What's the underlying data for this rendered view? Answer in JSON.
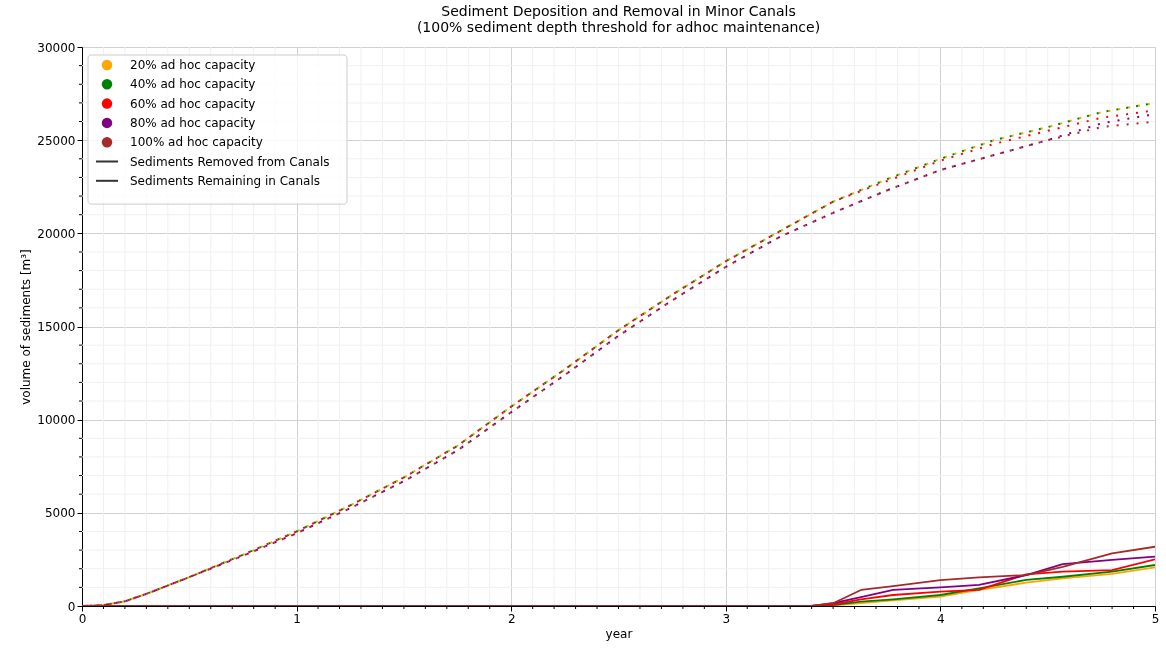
{
  "chart_data": {
    "type": "line",
    "title": "Sediment Deposition and Removal in Minor Canals",
    "subtitle": "(100% sediment depth threshold for adhoc maintenance)",
    "xlabel": "year",
    "ylabel": "volume of sediments [m³]",
    "x": [
      0,
      0.1,
      0.2,
      0.3,
      0.4,
      0.5,
      0.75,
      1,
      1.25,
      1.5,
      1.75,
      2,
      2.25,
      2.5,
      2.75,
      3,
      3.25,
      3.5,
      3.75,
      4,
      4.25,
      4.5,
      4.75,
      5
    ],
    "series": [
      {
        "name": "20% ad hoc capacity",
        "color": "#ffa500",
        "line_style": "dotted",
        "values": [
          0,
          50,
          250,
          650,
          1100,
          1550,
          2750,
          4000,
          5400,
          6900,
          8600,
          10700,
          12700,
          14800,
          16700,
          18500,
          20100,
          21700,
          22900,
          24000,
          25000,
          25700,
          26500,
          27000
        ]
      },
      {
        "name": "40% ad hoc capacity",
        "color": "#008000",
        "line_style": "dotted",
        "values": [
          0,
          50,
          250,
          650,
          1100,
          1550,
          2750,
          4000,
          5400,
          6900,
          8600,
          10700,
          12700,
          14800,
          16700,
          18500,
          20100,
          21700,
          22900,
          24000,
          25000,
          25700,
          26500,
          27000
        ]
      },
      {
        "name": "60% ad hoc capacity",
        "color": "#ff0000",
        "line_style": "dotted",
        "values": [
          0,
          50,
          250,
          650,
          1100,
          1550,
          2750,
          4000,
          5400,
          6900,
          8600,
          10700,
          12700,
          14800,
          16700,
          18500,
          20100,
          21700,
          22800,
          23900,
          24800,
          25500,
          26200,
          26600
        ]
      },
      {
        "name": "80% ad hoc capacity",
        "color": "#800080",
        "line_style": "dotted",
        "values": [
          0,
          50,
          250,
          650,
          1100,
          1550,
          2700,
          3900,
          5250,
          6700,
          8350,
          10400,
          12400,
          14500,
          16400,
          18200,
          19800,
          21100,
          22300,
          23400,
          24200,
          25000,
          25900,
          26400
        ]
      },
      {
        "name": "100% ad hoc capacity",
        "color": "#a52a2a",
        "line_style": "dotted",
        "values": [
          0,
          50,
          250,
          650,
          1100,
          1550,
          2700,
          3900,
          5250,
          6700,
          8350,
          10400,
          12400,
          14500,
          16400,
          18200,
          19800,
          21100,
          22300,
          23400,
          24200,
          25000,
          25700,
          26000
        ]
      },
      {
        "color": "#ffa500",
        "line_style": "solid",
        "x": [
          3.4,
          3.5,
          3.63,
          3.78,
          4,
          4.18,
          4.4,
          4.57,
          4.8,
          5
        ],
        "values": [
          0,
          30,
          150,
          300,
          500,
          860,
          1250,
          1480,
          1720,
          2070
        ]
      },
      {
        "color": "#008000",
        "line_style": "solid",
        "x": [
          3.4,
          3.5,
          3.63,
          3.78,
          4,
          4.18,
          4.4,
          4.57,
          4.8,
          5
        ],
        "values": [
          0,
          50,
          230,
          360,
          590,
          950,
          1400,
          1570,
          1840,
          2200
        ]
      },
      {
        "color": "#ff0000",
        "line_style": "solid",
        "x": [
          3.4,
          3.5,
          3.63,
          3.78,
          4,
          4.18,
          4.4,
          4.57,
          4.8,
          5
        ],
        "values": [
          0,
          80,
          360,
          590,
          770,
          860,
          1700,
          1840,
          1930,
          2500
        ]
      },
      {
        "color": "#800080",
        "line_style": "solid",
        "x": [
          3.4,
          3.5,
          3.63,
          3.78,
          4,
          4.18,
          4.4,
          4.57,
          4.8,
          5
        ],
        "values": [
          0,
          150,
          470,
          860,
          1000,
          1130,
          1660,
          2250,
          2470,
          2650
        ]
      },
      {
        "color": "#a52a2a",
        "line_style": "solid",
        "x": [
          0,
          3.4,
          3.5,
          3.63,
          3.78,
          4,
          4.18,
          4.4,
          4.57,
          4.8,
          5
        ],
        "values": [
          0,
          0,
          150,
          860,
          1070,
          1390,
          1540,
          1660,
          2100,
          2830,
          3180
        ]
      }
    ],
    "annotations": [
      "Sediments Removed from Canals",
      "Sediments Remaining in Canals"
    ],
    "xlim": [
      0,
      5
    ],
    "xticks": [
      0,
      {
        "value": 0.1,
        "label": null
      },
      {
        "value": 0.2,
        "label": null
      },
      {
        "value": 0.3,
        "label": null
      },
      {
        "value": 0.4,
        "label": null
      },
      {
        "value": 0.5,
        "label": null
      },
      {
        "value": 0.6,
        "label": null
      },
      {
        "value": 0.7,
        "label": null
      },
      {
        "value": 0.8,
        "label": null
      },
      {
        "value": 0.9,
        "label": null
      },
      1,
      {
        "value": 1.1,
        "label": null
      },
      {
        "value": 1.2,
        "label": null
      },
      {
        "value": 1.3,
        "label": null
      },
      {
        "value": 1.4,
        "label": null
      },
      {
        "value": 1.5,
        "label": null
      },
      {
        "value": 1.6,
        "label": null
      },
      {
        "value": 1.7,
        "label": null
      },
      {
        "value": 1.8,
        "label": null
      },
      {
        "value": 1.9,
        "label": null
      },
      2,
      {
        "value": 2.1,
        "label": null
      },
      {
        "value": 2.2,
        "label": null
      },
      {
        "value": 2.3,
        "label": null
      },
      {
        "value": 2.4,
        "label": null
      },
      {
        "value": 2.5,
        "label": null
      },
      {
        "value": 2.6,
        "label": null
      },
      {
        "value": 2.7,
        "label": null
      },
      {
        "value": 2.8,
        "label": null
      },
      {
        "value": 2.9,
        "label": null
      },
      3,
      {
        "value": 3.1,
        "label": null
      },
      {
        "value": 3.2,
        "label": null
      },
      {
        "value": 3.3,
        "label": null
      },
      {
        "value": 3.4,
        "label": null
      },
      {
        "value": 3.5,
        "label": null
      },
      {
        "value": 3.6,
        "label": null
      },
      {
        "value": 3.7,
        "label": null
      },
      {
        "value": 3.8,
        "label": null
      },
      {
        "value": 3.9,
        "label": null
      },
      4,
      {
        "value": 4.1,
        "label": null
      },
      {
        "value": 4.2,
        "label": null
      },
      {
        "value": 4.3,
        "label": null
      },
      {
        "value": 4.4,
        "label": null
      },
      {
        "value": 4.5,
        "label": null
      },
      {
        "value": 4.6,
        "label": null
      },
      {
        "value": 4.7,
        "label": null
      },
      {
        "value": 4.8,
        "label": null
      },
      {
        "value": 4.9,
        "label": null
      },
      5
    ],
    "ylim": [
      0,
      30000
    ],
    "yticks": [
      0,
      {
        "value": 1000,
        "label": null
      },
      {
        "value": 2000,
        "label": null
      },
      {
        "value": 3000,
        "label": null
      },
      {
        "value": 4000,
        "label": null
      },
      5000,
      {
        "value": 6000,
        "label": null
      },
      {
        "value": 7000,
        "label": null
      },
      {
        "value": 8000,
        "label": null
      },
      {
        "value": 9000,
        "label": null
      },
      10000,
      {
        "value": 11000,
        "label": null
      },
      {
        "value": 12000,
        "label": null
      },
      {
        "value": 13000,
        "label": null
      },
      {
        "value": 14000,
        "label": null
      },
      15000,
      {
        "value": 16000,
        "label": null
      },
      {
        "value": 17000,
        "label": null
      },
      {
        "value": 18000,
        "label": null
      },
      {
        "value": 19000,
        "label": null
      },
      20000,
      {
        "value": 21000,
        "label": null
      },
      {
        "value": 22000,
        "label": null
      },
      {
        "value": 23000,
        "label": null
      },
      {
        "value": 24000,
        "label": null
      },
      25000,
      {
        "value": 26000,
        "label": null
      },
      {
        "value": 27000,
        "label": null
      },
      {
        "value": 28000,
        "label": null
      },
      {
        "value": 29000,
        "label": null
      },
      30000
    ],
    "grid": true,
    "legend": "top left"
  }
}
